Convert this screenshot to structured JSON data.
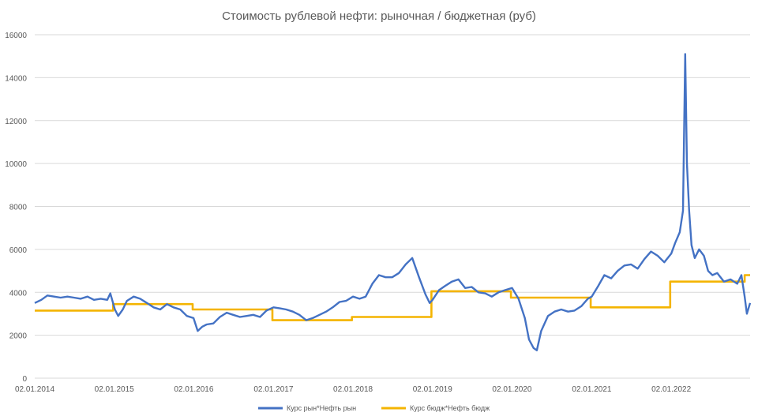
{
  "chart_data": {
    "type": "line",
    "title": "Стоимость рублевой нефти: рыночная / бюджетная (руб)",
    "xlabel": "",
    "ylabel": "",
    "ylim": [
      0,
      16000
    ],
    "yticks": [
      0,
      2000,
      4000,
      6000,
      8000,
      10000,
      12000,
      14000,
      16000
    ],
    "xlim": [
      "2014-01-02",
      "2022-12-30"
    ],
    "xticks": [
      "02.01.2014",
      "02.01.2015",
      "02.01.2016",
      "02.01.2017",
      "02.01.2018",
      "02.01.2019",
      "02.01.2020",
      "02.01.2021",
      "02.01.2022"
    ],
    "grid": "horizontal",
    "legend_position": "bottom",
    "series": [
      {
        "name": "Курс рын*Нефть рын",
        "color": "#4472c4",
        "points": [
          [
            "2014-01-02",
            3500
          ],
          [
            "2014-02-01",
            3650
          ],
          [
            "2014-03-01",
            3850
          ],
          [
            "2014-04-01",
            3800
          ],
          [
            "2014-05-01",
            3750
          ],
          [
            "2014-06-01",
            3800
          ],
          [
            "2014-07-01",
            3750
          ],
          [
            "2014-08-01",
            3700
          ],
          [
            "2014-09-01",
            3800
          ],
          [
            "2014-10-01",
            3650
          ],
          [
            "2014-11-01",
            3700
          ],
          [
            "2014-12-01",
            3650
          ],
          [
            "2014-12-15",
            3950
          ],
          [
            "2015-01-05",
            3200
          ],
          [
            "2015-01-20",
            2900
          ],
          [
            "2015-02-10",
            3200
          ],
          [
            "2015-03-01",
            3600
          ],
          [
            "2015-04-01",
            3800
          ],
          [
            "2015-05-01",
            3700
          ],
          [
            "2015-06-01",
            3500
          ],
          [
            "2015-07-01",
            3300
          ],
          [
            "2015-08-01",
            3200
          ],
          [
            "2015-09-01",
            3450
          ],
          [
            "2015-10-01",
            3300
          ],
          [
            "2015-11-01",
            3200
          ],
          [
            "2015-12-01",
            2900
          ],
          [
            "2016-01-01",
            2800
          ],
          [
            "2016-01-20",
            2200
          ],
          [
            "2016-02-10",
            2400
          ],
          [
            "2016-03-01",
            2500
          ],
          [
            "2016-04-01",
            2550
          ],
          [
            "2016-05-01",
            2850
          ],
          [
            "2016-06-01",
            3050
          ],
          [
            "2016-07-01",
            2950
          ],
          [
            "2016-08-01",
            2850
          ],
          [
            "2016-09-01",
            2900
          ],
          [
            "2016-10-01",
            2950
          ],
          [
            "2016-11-01",
            2850
          ],
          [
            "2016-12-01",
            3150
          ],
          [
            "2017-01-02",
            3300
          ],
          [
            "2017-02-01",
            3250
          ],
          [
            "2017-03-01",
            3200
          ],
          [
            "2017-04-01",
            3100
          ],
          [
            "2017-05-01",
            2950
          ],
          [
            "2017-06-01",
            2700
          ],
          [
            "2017-07-01",
            2800
          ],
          [
            "2017-08-01",
            2950
          ],
          [
            "2017-09-01",
            3100
          ],
          [
            "2017-10-01",
            3300
          ],
          [
            "2017-11-01",
            3550
          ],
          [
            "2017-12-01",
            3600
          ],
          [
            "2018-01-02",
            3800
          ],
          [
            "2018-02-01",
            3700
          ],
          [
            "2018-03-01",
            3800
          ],
          [
            "2018-04-01",
            4400
          ],
          [
            "2018-05-01",
            4800
          ],
          [
            "2018-06-01",
            4700
          ],
          [
            "2018-07-01",
            4700
          ],
          [
            "2018-08-01",
            4900
          ],
          [
            "2018-09-01",
            5300
          ],
          [
            "2018-10-01",
            5600
          ],
          [
            "2018-11-01",
            4700
          ],
          [
            "2018-12-01",
            3900
          ],
          [
            "2018-12-20",
            3500
          ],
          [
            "2019-01-02",
            3650
          ],
          [
            "2019-02-01",
            4100
          ],
          [
            "2019-03-01",
            4300
          ],
          [
            "2019-04-01",
            4500
          ],
          [
            "2019-05-01",
            4600
          ],
          [
            "2019-06-01",
            4200
          ],
          [
            "2019-07-01",
            4250
          ],
          [
            "2019-08-01",
            4000
          ],
          [
            "2019-09-01",
            3950
          ],
          [
            "2019-10-01",
            3800
          ],
          [
            "2019-11-01",
            4000
          ],
          [
            "2019-12-01",
            4100
          ],
          [
            "2020-01-02",
            4200
          ],
          [
            "2020-02-01",
            3700
          ],
          [
            "2020-03-01",
            2800
          ],
          [
            "2020-03-20",
            1800
          ],
          [
            "2020-04-10",
            1400
          ],
          [
            "2020-04-25",
            1300
          ],
          [
            "2020-05-15",
            2200
          ],
          [
            "2020-06-15",
            2900
          ],
          [
            "2020-07-15",
            3100
          ],
          [
            "2020-08-15",
            3200
          ],
          [
            "2020-09-15",
            3100
          ],
          [
            "2020-10-15",
            3150
          ],
          [
            "2020-11-15",
            3350
          ],
          [
            "2020-12-15",
            3700
          ],
          [
            "2021-01-02",
            3800
          ],
          [
            "2021-02-01",
            4300
          ],
          [
            "2021-03-01",
            4800
          ],
          [
            "2021-04-01",
            4650
          ],
          [
            "2021-05-01",
            5000
          ],
          [
            "2021-06-01",
            5250
          ],
          [
            "2021-07-01",
            5300
          ],
          [
            "2021-08-01",
            5100
          ],
          [
            "2021-09-01",
            5550
          ],
          [
            "2021-10-01",
            5900
          ],
          [
            "2021-11-01",
            5700
          ],
          [
            "2021-12-01",
            5400
          ],
          [
            "2022-01-02",
            5800
          ],
          [
            "2022-01-20",
            6300
          ],
          [
            "2022-02-10",
            6800
          ],
          [
            "2022-02-25",
            7800
          ],
          [
            "2022-03-07",
            15100
          ],
          [
            "2022-03-15",
            10000
          ],
          [
            "2022-03-25",
            7800
          ],
          [
            "2022-04-05",
            6200
          ],
          [
            "2022-04-20",
            5600
          ],
          [
            "2022-05-10",
            6000
          ],
          [
            "2022-06-01",
            5700
          ],
          [
            "2022-06-20",
            5000
          ],
          [
            "2022-07-10",
            4800
          ],
          [
            "2022-08-01",
            4900
          ],
          [
            "2022-09-01",
            4500
          ],
          [
            "2022-10-01",
            4600
          ],
          [
            "2022-11-01",
            4400
          ],
          [
            "2022-11-20",
            4800
          ],
          [
            "2022-12-05",
            3800
          ],
          [
            "2022-12-15",
            3000
          ],
          [
            "2022-12-30",
            3500
          ]
        ]
      },
      {
        "name": "Курс бюдж*Нефть бюдж",
        "color": "#f4b400",
        "points": [
          [
            "2014-01-02",
            3150
          ],
          [
            "2014-12-28",
            3150
          ],
          [
            "2014-12-28",
            3450
          ],
          [
            "2015-12-28",
            3450
          ],
          [
            "2015-12-28",
            3200
          ],
          [
            "2016-12-28",
            3200
          ],
          [
            "2016-12-28",
            2700
          ],
          [
            "2017-12-28",
            2700
          ],
          [
            "2017-12-28",
            2850
          ],
          [
            "2018-12-28",
            2850
          ],
          [
            "2018-12-28",
            4050
          ],
          [
            "2019-12-28",
            4050
          ],
          [
            "2019-12-28",
            3750
          ],
          [
            "2020-12-28",
            3750
          ],
          [
            "2020-12-28",
            3300
          ],
          [
            "2021-12-28",
            3300
          ],
          [
            "2021-12-28",
            4500
          ],
          [
            "2022-12-05",
            4500
          ],
          [
            "2022-12-05",
            4800
          ],
          [
            "2022-12-30",
            4800
          ]
        ]
      }
    ]
  }
}
